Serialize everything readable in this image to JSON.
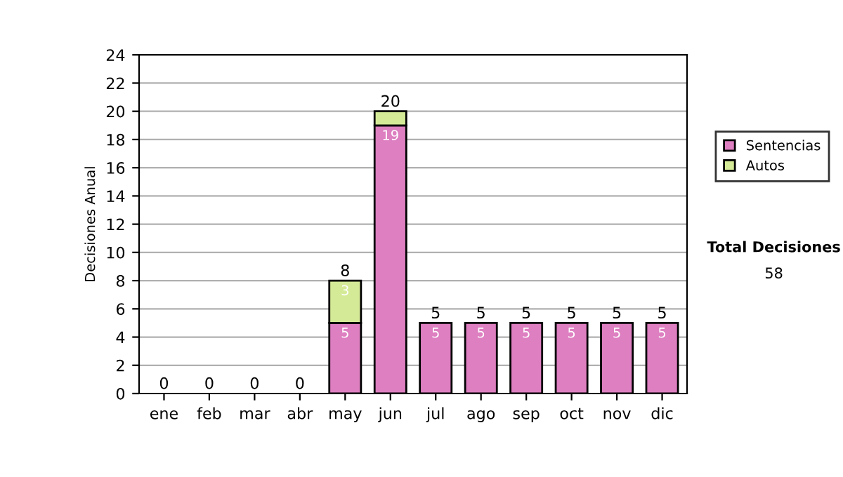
{
  "chart_data": {
    "type": "bar",
    "stacked": true,
    "ylabel": "Decisiones Anual",
    "categories": [
      "ene",
      "feb",
      "mar",
      "abr",
      "may",
      "jun",
      "jul",
      "ago",
      "sep",
      "oct",
      "nov",
      "dic"
    ],
    "series": [
      {
        "name": "Sentencias",
        "color": "#dd7fc0",
        "values": [
          0,
          0,
          0,
          0,
          5,
          19,
          5,
          5,
          5,
          5,
          5,
          5
        ],
        "value_labels": [
          null,
          null,
          null,
          null,
          "5",
          "19",
          "5",
          "5",
          "5",
          "5",
          "5",
          "5"
        ]
      },
      {
        "name": "Autos",
        "color": "#d5ea97",
        "values": [
          0,
          0,
          0,
          0,
          3,
          1,
          0,
          0,
          0,
          0,
          0,
          0
        ],
        "value_labels": [
          null,
          null,
          null,
          null,
          "3",
          null,
          null,
          null,
          null,
          null,
          null,
          null
        ]
      }
    ],
    "totals": [
      "0",
      "0",
      "0",
      "0",
      "8",
      "20",
      "5",
      "5",
      "5",
      "5",
      "5",
      "5"
    ],
    "ylim": [
      0,
      24
    ],
    "yticks": [
      0,
      2,
      4,
      6,
      8,
      10,
      12,
      14,
      16,
      18,
      20,
      22,
      24
    ],
    "grid": "y",
    "legend": "right",
    "annotations": [
      "Total Decisiones",
      "58"
    ]
  }
}
